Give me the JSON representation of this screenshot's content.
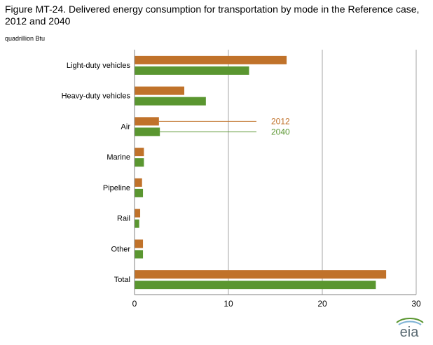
{
  "title": "Figure MT-24. Delivered energy consumption for transportation by mode in the Reference case, 2012 and 2040",
  "unit_label": "quadrillion Btu",
  "logo_text": "eia",
  "colors": {
    "series_2012": "#C0722A",
    "series_2040": "#5A9630",
    "grid": "#A6A6A6",
    "axis": "#808080"
  },
  "chart_data": {
    "type": "bar",
    "orientation": "horizontal",
    "categories": [
      "Light-duty vehicles",
      "Heavy-duty  vehicles",
      "Air",
      "Marine",
      "Pipeline",
      "Rail",
      "Other",
      "Total"
    ],
    "series": [
      {
        "name": "2012",
        "values": [
          16.2,
          5.3,
          2.6,
          1.0,
          0.8,
          0.6,
          0.9,
          26.8
        ]
      },
      {
        "name": "2040",
        "values": [
          12.2,
          7.6,
          2.7,
          1.0,
          0.9,
          0.5,
          0.9,
          25.7
        ]
      }
    ],
    "xlim": [
      0,
      30
    ],
    "xticks": [
      "0",
      "10",
      "20",
      "30"
    ],
    "grid": true,
    "legend": "inline callouts next to Air bars"
  }
}
